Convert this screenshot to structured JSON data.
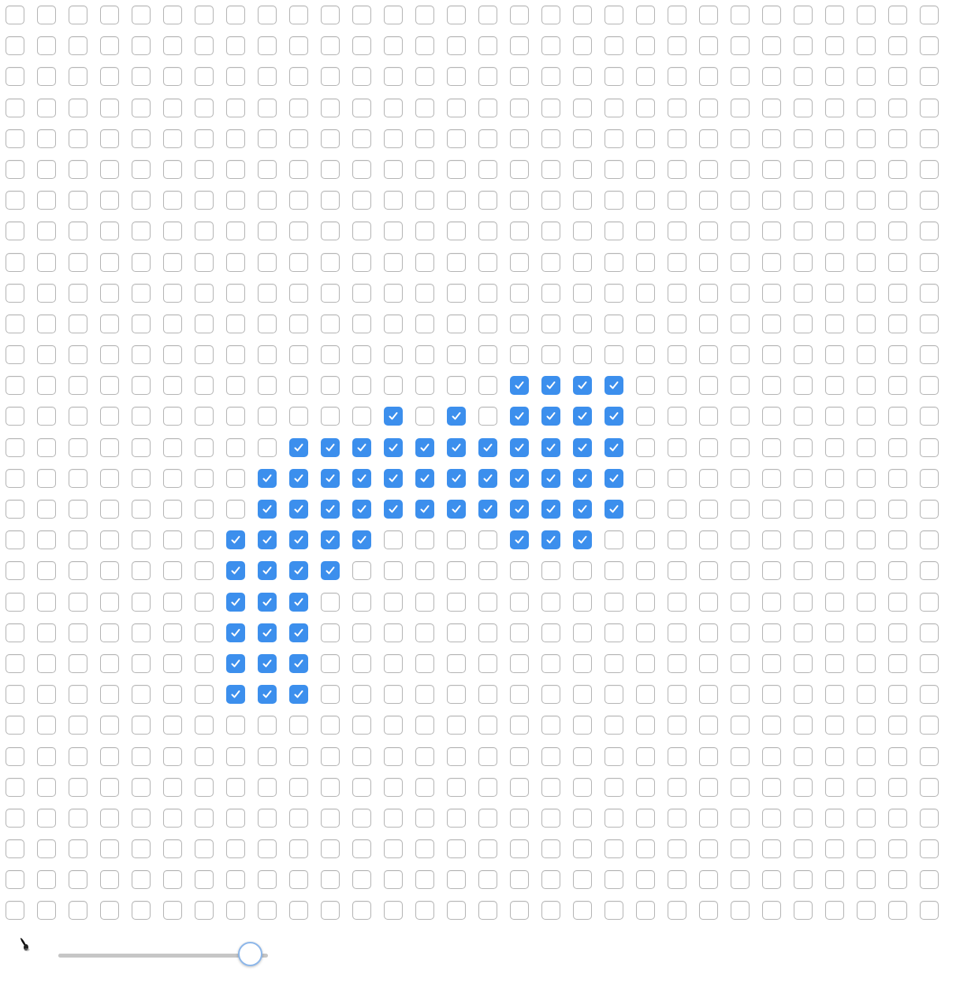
{
  "grid": {
    "rows": 30,
    "cols": 30,
    "checked_color": "#3c8fed",
    "checked": {
      "12": [
        16,
        17,
        18,
        19
      ],
      "13": [
        12,
        14,
        16,
        17,
        18,
        19
      ],
      "14": [
        9,
        10,
        11,
        12,
        13,
        14,
        15,
        16,
        17,
        18,
        19
      ],
      "15": [
        8,
        9,
        10,
        11,
        12,
        13,
        14,
        15,
        16,
        17,
        18,
        19
      ],
      "16": [
        8,
        9,
        10,
        11,
        12,
        13,
        14,
        15,
        16,
        17,
        18,
        19
      ],
      "17": [
        7,
        8,
        9,
        10,
        11,
        16,
        17,
        18
      ],
      "18": [
        7,
        8,
        9,
        10
      ],
      "19": [
        7,
        8,
        9
      ],
      "20": [
        7,
        8,
        9
      ],
      "21": [
        7,
        8,
        9
      ],
      "22": [
        7,
        8,
        9
      ]
    }
  },
  "controls": {
    "brush_icon": "paint-brush-icon",
    "brush_size_slider": {
      "value": 0.92
    }
  }
}
